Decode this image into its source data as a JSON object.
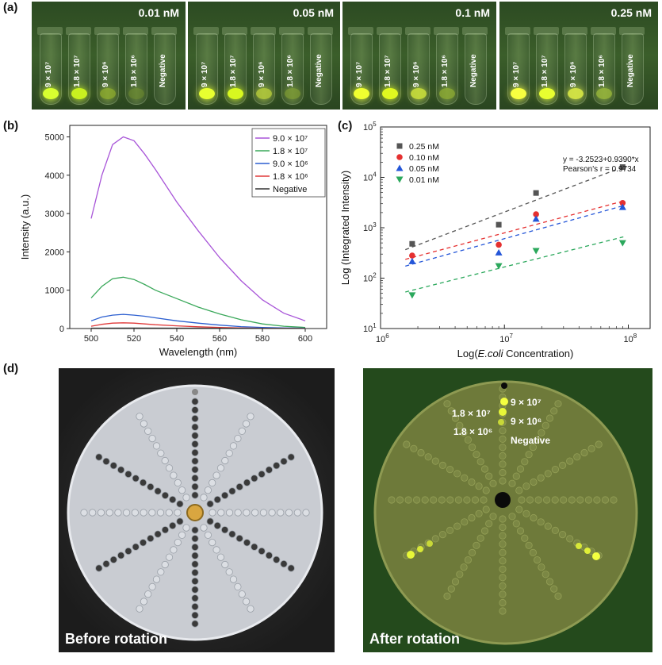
{
  "labels": {
    "a": "(a)",
    "b": "(b)",
    "c": "(c)",
    "d": "(d)"
  },
  "panel_a": {
    "panels": [
      {
        "conc": "0.01 nM"
      },
      {
        "conc": "0.05 nM"
      },
      {
        "conc": "0.1 nM"
      },
      {
        "conc": "0.25 nM"
      }
    ],
    "tube_labels": [
      "9 × 10⁷",
      "1.8 × 10⁷",
      "9 × 10⁶",
      "1.8 × 10⁶",
      "Negative"
    ]
  },
  "chart_data": [
    {
      "type": "line",
      "xlabel": "Wavelength (nm)",
      "ylabel": "Intensity (a.u.)",
      "xlim": [
        490,
        610
      ],
      "ylim": [
        0,
        5300
      ],
      "xticks": [
        500,
        520,
        540,
        560,
        580,
        600
      ],
      "yticks": [
        0,
        1000,
        2000,
        3000,
        4000,
        5000
      ],
      "legend": [
        "9.0 × 10⁷",
        "1.8 × 10⁷",
        "9.0 × 10⁶",
        "1.8 × 10⁶",
        "Negative"
      ],
      "series": [
        {
          "name": "9.0 × 10⁷",
          "color": "#a855d8",
          "x": [
            500,
            505,
            510,
            515,
            520,
            525,
            530,
            540,
            550,
            560,
            570,
            580,
            590,
            600
          ],
          "values": [
            2870,
            4000,
            4800,
            5000,
            4900,
            4550,
            4150,
            3300,
            2550,
            1850,
            1250,
            750,
            400,
            200
          ]
        },
        {
          "name": "1.8 × 10⁷",
          "color": "#3aa85a",
          "x": [
            500,
            505,
            510,
            515,
            520,
            525,
            530,
            540,
            550,
            560,
            570,
            580,
            590,
            600
          ],
          "values": [
            800,
            1100,
            1300,
            1340,
            1280,
            1150,
            1000,
            780,
            560,
            380,
            230,
            120,
            60,
            30
          ]
        },
        {
          "name": "9.0 × 10⁶",
          "color": "#2c5fd0",
          "x": [
            500,
            505,
            510,
            515,
            520,
            525,
            530,
            540,
            550,
            560,
            570,
            580,
            590,
            600
          ],
          "values": [
            200,
            300,
            350,
            370,
            350,
            320,
            280,
            200,
            140,
            90,
            50,
            30,
            15,
            8
          ]
        },
        {
          "name": "1.8 × 10⁶",
          "color": "#e03a3a",
          "x": [
            500,
            505,
            510,
            515,
            520,
            525,
            530,
            540,
            550,
            560,
            570,
            580,
            590,
            600
          ],
          "values": [
            60,
            110,
            140,
            150,
            140,
            120,
            100,
            70,
            45,
            28,
            15,
            8,
            4,
            2
          ]
        },
        {
          "name": "Negative",
          "color": "#333333",
          "x": [
            500,
            520,
            540,
            560,
            580,
            600
          ],
          "values": [
            10,
            12,
            10,
            8,
            5,
            3
          ]
        }
      ]
    },
    {
      "type": "scatter",
      "xlabel_pre": "Log(",
      "xlabel_em": "E.coli",
      "xlabel_post": " Concentration)",
      "ylabel": "Log (Integrated Intensity)",
      "x_scale": "log",
      "y_scale": "log",
      "xlim": [
        1000000,
        150000000
      ],
      "ylim": [
        10,
        100000
      ],
      "xtick_base": [
        "10",
        "10",
        "10"
      ],
      "xtick_exp": [
        "6",
        "7",
        "8"
      ],
      "ytick_base": [
        "10",
        "10",
        "10",
        "10",
        "10"
      ],
      "ytick_exp": [
        "1",
        "2",
        "3",
        "4",
        "5"
      ],
      "annotation": [
        "y = -3.2523+0.9390*x",
        "Pearson's r = 0.9734"
      ],
      "x": [
        1800000,
        9000000,
        18000000,
        90000000
      ],
      "series": [
        {
          "name": "0.25 nM",
          "color": "#555555",
          "marker": "square",
          "values": [
            480,
            1150,
            4900,
            16000
          ]
        },
        {
          "name": "0.10 nM",
          "color": "#e53030",
          "marker": "circle",
          "values": [
            280,
            460,
            1850,
            3100
          ]
        },
        {
          "name": "0.05 nM",
          "color": "#2456d8",
          "marker": "triangle-up",
          "values": [
            215,
            320,
            1500,
            2550
          ]
        },
        {
          "name": "0.01 nM",
          "color": "#2ba85c",
          "marker": "triangle-down",
          "values": [
            46,
            175,
            350,
            500
          ]
        }
      ]
    }
  ],
  "panel_d": {
    "before_caption": "Before rotation",
    "after_caption": "After rotation",
    "after_labels": [
      "9 × 10⁷",
      "1.8 × 10⁷",
      "9 × 10⁶",
      "1.8 × 10⁶",
      "Negative"
    ]
  }
}
